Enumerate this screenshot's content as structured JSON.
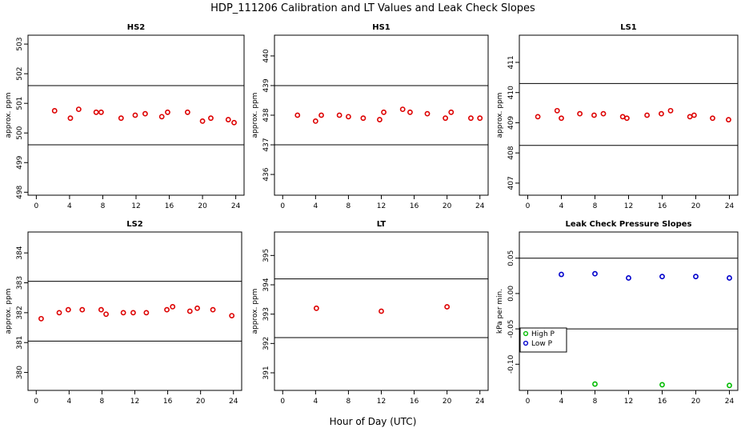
{
  "figure": {
    "title": "HDP_111206  Calibration and LT Values and Leak Check Slopes",
    "xlabel": "Hour of Day (UTC)"
  },
  "chart_data": [
    {
      "type": "scatter",
      "title": "HS2",
      "ylabel": "approx. ppm",
      "xlim": [
        -1,
        25
      ],
      "ylim": [
        497.9,
        503.3
      ],
      "xticks": [
        0,
        4,
        8,
        12,
        16,
        20,
        24
      ],
      "yticks": [
        498,
        499,
        500,
        501,
        502,
        503
      ],
      "hlines": [
        501.6,
        499.6
      ],
      "series": [
        {
          "marker": "circle",
          "color": "#dd0000",
          "x": [
            2.2,
            4.1,
            5.1,
            7.2,
            7.8,
            10.2,
            11.9,
            13.1,
            15.1,
            15.8,
            18.2,
            20.0,
            21.0,
            23.1,
            23.8
          ],
          "y": [
            500.75,
            500.5,
            500.8,
            500.7,
            500.7,
            500.5,
            500.6,
            500.65,
            500.55,
            500.7,
            500.7,
            500.4,
            500.5,
            500.45,
            500.35
          ]
        }
      ]
    },
    {
      "type": "scatter",
      "title": "HS1",
      "ylabel": "approx. ppm",
      "xlim": [
        -1,
        25
      ],
      "ylim": [
        435.3,
        440.7
      ],
      "xticks": [
        0,
        4,
        8,
        12,
        16,
        20,
        24
      ],
      "yticks": [
        436,
        437,
        438,
        439,
        440
      ],
      "hlines": [
        439.0,
        437.0
      ],
      "series": [
        {
          "marker": "circle",
          "color": "#dd0000",
          "x": [
            1.8,
            4.0,
            4.7,
            6.9,
            8.0,
            9.8,
            11.8,
            12.3,
            14.6,
            15.5,
            17.6,
            19.8,
            20.5,
            22.9,
            24.0
          ],
          "y": [
            438.0,
            437.8,
            438.0,
            438.0,
            437.95,
            437.9,
            437.85,
            438.1,
            438.2,
            438.1,
            438.05,
            437.9,
            438.1,
            437.9,
            437.9
          ]
        }
      ]
    },
    {
      "type": "scatter",
      "title": "LS1",
      "ylabel": "approx. ppm",
      "xlim": [
        -1,
        25
      ],
      "ylim": [
        406.6,
        411.9
      ],
      "xticks": [
        0,
        4,
        8,
        12,
        16,
        20,
        24
      ],
      "yticks": [
        407,
        408,
        409,
        410,
        411
      ],
      "hlines": [
        410.3,
        408.25
      ],
      "series": [
        {
          "marker": "circle",
          "color": "#dd0000",
          "x": [
            1.2,
            3.5,
            4.0,
            6.2,
            7.9,
            9.0,
            11.3,
            11.8,
            14.2,
            15.9,
            17.0,
            19.3,
            19.8,
            22.0,
            23.9
          ],
          "y": [
            409.2,
            409.4,
            409.15,
            409.3,
            409.25,
            409.3,
            409.2,
            409.15,
            409.25,
            409.3,
            409.4,
            409.2,
            409.25,
            409.15,
            409.1
          ]
        }
      ]
    },
    {
      "type": "scatter",
      "title": "LS2",
      "ylabel": "approx. ppm",
      "xlim": [
        -1,
        25
      ],
      "ylim": [
        379.4,
        384.7
      ],
      "xticks": [
        0,
        4,
        8,
        12,
        16,
        20,
        24
      ],
      "yticks": [
        380,
        381,
        382,
        383,
        384
      ],
      "hlines": [
        383.05,
        381.05
      ],
      "series": [
        {
          "marker": "circle",
          "color": "#dd0000",
          "x": [
            0.6,
            2.8,
            3.9,
            5.6,
            7.9,
            8.5,
            10.6,
            11.8,
            13.4,
            15.9,
            16.6,
            18.7,
            19.6,
            21.5,
            23.8
          ],
          "y": [
            381.8,
            382.0,
            382.1,
            382.1,
            382.1,
            381.95,
            382.0,
            382.0,
            382.0,
            382.1,
            382.2,
            382.05,
            382.15,
            382.1,
            381.9
          ]
        }
      ]
    },
    {
      "type": "scatter",
      "title": "LT",
      "ylabel": "approx. ppm",
      "xlim": [
        -1,
        25
      ],
      "ylim": [
        390.4,
        395.8
      ],
      "xticks": [
        0,
        4,
        8,
        12,
        16,
        20,
        24
      ],
      "yticks": [
        391,
        392,
        393,
        394,
        395
      ],
      "hlines": [
        394.2,
        392.2
      ],
      "series": [
        {
          "marker": "circle",
          "color": "#dd0000",
          "x": [
            4.1,
            12.0,
            20.0
          ],
          "y": [
            393.2,
            393.1,
            393.25
          ]
        }
      ]
    },
    {
      "type": "scatter",
      "title": "Leak Check Pressure Slopes",
      "ylabel": "kPa per min.",
      "xlim": [
        -1,
        25
      ],
      "ylim": [
        -0.137,
        0.087
      ],
      "xticks": [
        0,
        4,
        8,
        12,
        16,
        20,
        24
      ],
      "yticks": [
        -0.1,
        -0.05,
        0.0,
        0.05
      ],
      "ytick_labels": [
        "-0.10",
        "-0.05",
        "0.00",
        "0.05"
      ],
      "hlines": [
        0.05,
        -0.05
      ],
      "legend": {
        "position": "bottom-left"
      },
      "series": [
        {
          "name": "High P",
          "marker": "circle",
          "color": "#00bb00",
          "x": [
            8,
            16,
            24
          ],
          "y": [
            -0.128,
            -0.129,
            -0.13
          ]
        },
        {
          "name": "Low P",
          "marker": "circle",
          "color": "#0000cc",
          "x": [
            4,
            8,
            12,
            16,
            20,
            24
          ],
          "y": [
            0.027,
            0.028,
            0.022,
            0.024,
            0.024,
            0.022
          ]
        }
      ]
    }
  ]
}
